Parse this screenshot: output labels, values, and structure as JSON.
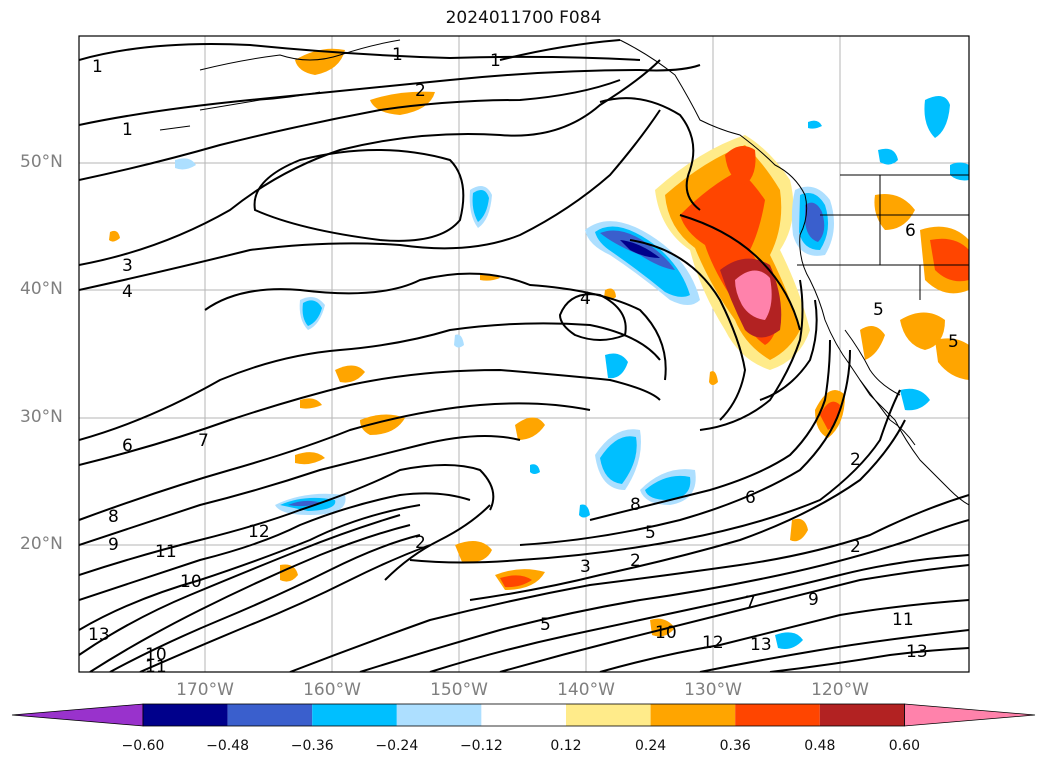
{
  "title": "2024011700 F084",
  "lat_labels": [
    "50°N",
    "40°N",
    "30°N",
    "20°N"
  ],
  "lon_labels": [
    "170°W",
    "160°W",
    "150°W",
    "140°W",
    "130°W",
    "120°W"
  ],
  "contour_labels": [
    "1",
    "1",
    "1",
    "2",
    "1",
    "3",
    "4",
    "4",
    "6",
    "7",
    "8",
    "9",
    "11",
    "12",
    "10",
    "13",
    "10",
    "11",
    "2",
    "3",
    "2",
    "5",
    "5",
    "6",
    "7",
    "8",
    "9",
    "10",
    "12",
    "13",
    "11",
    "13",
    "5",
    "2",
    "2",
    "6",
    "5"
  ],
  "colorbar": {
    "ticks": [
      "−0.60",
      "−0.48",
      "−0.36",
      "−0.24",
      "−0.12",
      "0.12",
      "0.24",
      "0.36",
      "0.48",
      "0.60"
    ],
    "colors": [
      "#9932cc",
      "#00008b",
      "#3a5fcd",
      "#00bfff",
      "#addfff",
      "#ffffff",
      "#ffeb8a",
      "#ffa500",
      "#ff4500",
      "#b22222",
      "#ff82ab"
    ]
  }
}
